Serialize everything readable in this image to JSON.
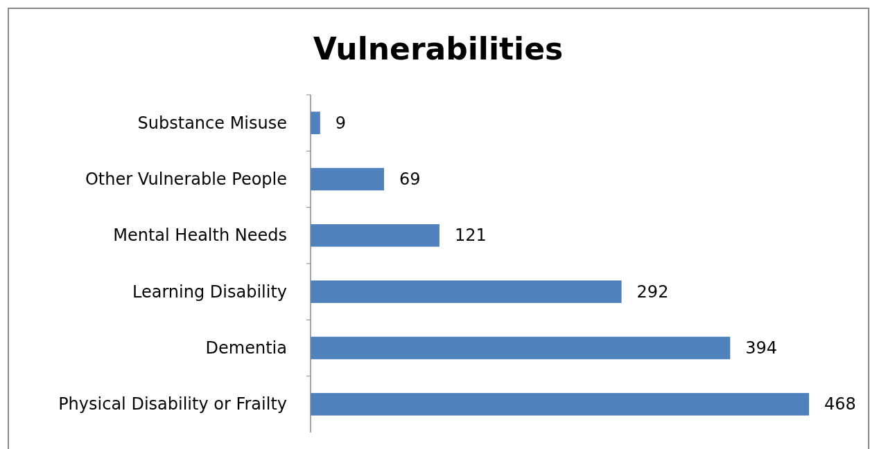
{
  "chart_data": {
    "type": "bar",
    "orientation": "horizontal",
    "title": "Vulnerabilities",
    "categories": [
      "Substance Misuse",
      "Other Vulnerable People",
      "Mental Health Needs",
      "Learning Disability",
      "Dementia",
      "Physical Disability or Frailty"
    ],
    "values": [
      9,
      69,
      121,
      292,
      394,
      468
    ],
    "color": "#4f81bd",
    "data_labels": true
  }
}
